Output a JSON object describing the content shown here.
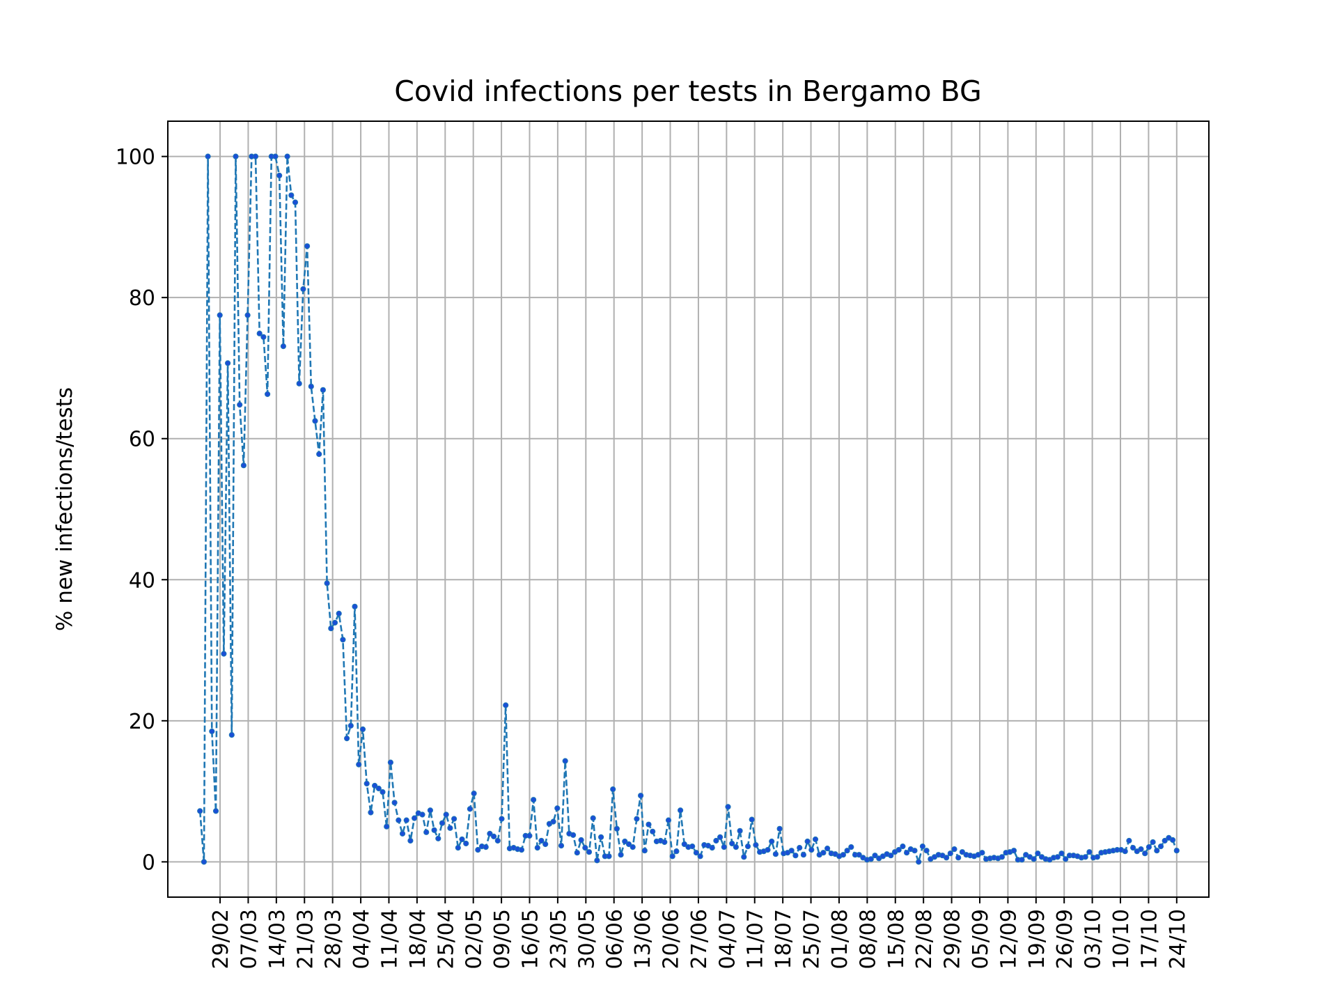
{
  "chart_data": {
    "type": "line",
    "title": "Covid infections per tests in Bergamo BG",
    "xlabel": "",
    "ylabel": "% new infections/tests",
    "ylim": [
      -5,
      105
    ],
    "grid": true,
    "line_style": "dashed",
    "marker": "dot",
    "colors": {
      "line": "#1f77b4",
      "marker": "#1a4fd6",
      "grid": "#b0b0b0"
    },
    "x_start": "2020-02-24",
    "x_end": "2020-10-24",
    "y_ticks": [
      0,
      20,
      40,
      60,
      80,
      100
    ],
    "x_tick_labels": [
      "29/02",
      "07/03",
      "14/03",
      "21/03",
      "28/03",
      "04/04",
      "11/04",
      "18/04",
      "25/04",
      "02/05",
      "09/05",
      "16/05",
      "23/05",
      "30/05",
      "06/06",
      "13/06",
      "20/06",
      "27/06",
      "04/07",
      "11/07",
      "18/07",
      "25/07",
      "01/08",
      "08/08",
      "15/08",
      "22/08",
      "29/08",
      "05/09",
      "12/09",
      "19/09",
      "26/09",
      "03/10",
      "10/10",
      "17/10",
      "24/10"
    ],
    "values": [
      7.2,
      0.0,
      100.0,
      18.5,
      7.2,
      77.5,
      29.5,
      70.7,
      18.0,
      100.0,
      64.8,
      56.2,
      77.5,
      100.0,
      100.0,
      74.9,
      74.4,
      66.3,
      100.0,
      100.0,
      97.3,
      73.1,
      100.0,
      94.5,
      93.5,
      67.8,
      81.2,
      87.3,
      67.4,
      62.5,
      57.8,
      66.9,
      39.5,
      33.1,
      33.9,
      35.2,
      31.5,
      17.5,
      19.3,
      36.2,
      13.8,
      18.8,
      11.1,
      7.0,
      10.8,
      10.4,
      9.9,
      5.0,
      14.1,
      8.4,
      5.9,
      4.0,
      5.9,
      3.0,
      6.2,
      6.9,
      6.7,
      4.2,
      7.3,
      4.5,
      3.3,
      5.5,
      6.7,
      4.8,
      6.1,
      2.0,
      3.2,
      2.6,
      7.5,
      9.7,
      1.7,
      2.2,
      2.1,
      4.0,
      3.6,
      3.0,
      6.1,
      22.2,
      1.9,
      2.0,
      1.8,
      1.7,
      3.7,
      3.7,
      8.8,
      2.0,
      3.0,
      2.5,
      5.4,
      5.7,
      7.6,
      2.3,
      14.3,
      4.0,
      3.8,
      1.3,
      3.1,
      2.0,
      1.4,
      6.2,
      0.2,
      3.5,
      0.8,
      0.8,
      10.3,
      4.7,
      1.0,
      2.9,
      2.5,
      2.1,
      6.1,
      9.4,
      1.6,
      5.3,
      4.3,
      2.9,
      3.0,
      2.8,
      5.9,
      0.8,
      1.5,
      7.3,
      2.5,
      2.1,
      2.2,
      1.3,
      0.8,
      2.4,
      2.3,
      2.0,
      3.0,
      3.5,
      2.1,
      7.8,
      2.6,
      2.1,
      4.4,
      0.7,
      2.2,
      6.0,
      2.4,
      1.4,
      1.5,
      1.7,
      2.9,
      1.1,
      4.7,
      1.2,
      1.3,
      1.6,
      0.9,
      2.0,
      1.0,
      2.9,
      1.7,
      3.2,
      1.0,
      1.3,
      1.9,
      1.2,
      1.1,
      0.8,
      1.0,
      1.6,
      2.1,
      1.0,
      1.0,
      0.6,
      0.3,
      0.4,
      0.9,
      0.5,
      0.8,
      1.1,
      0.9,
      1.4,
      1.7,
      2.2,
      1.3,
      1.8,
      1.6,
      0.0,
      2.2,
      1.6,
      0.4,
      0.7,
      1.0,
      0.9,
      0.6,
      1.2,
      1.8,
      0.6,
      1.4,
      1.0,
      0.9,
      0.8,
      1.0,
      1.3,
      0.4,
      0.5,
      0.6,
      0.5,
      0.7,
      1.3,
      1.4,
      1.6,
      0.3,
      0.3,
      1.0,
      0.7,
      0.4,
      1.2,
      0.7,
      0.4,
      0.3,
      0.6,
      0.7,
      1.2,
      0.4,
      0.9,
      0.9,
      0.8,
      0.6,
      0.7,
      1.4,
      0.6,
      0.7,
      1.3,
      1.4,
      1.5,
      1.6,
      1.7,
      1.7,
      1.5,
      3.0,
      2.0,
      1.5,
      1.8,
      1.2,
      2.1,
      2.8,
      1.6,
      2.2,
      3.0,
      3.4,
      3.1,
      1.6
    ]
  }
}
